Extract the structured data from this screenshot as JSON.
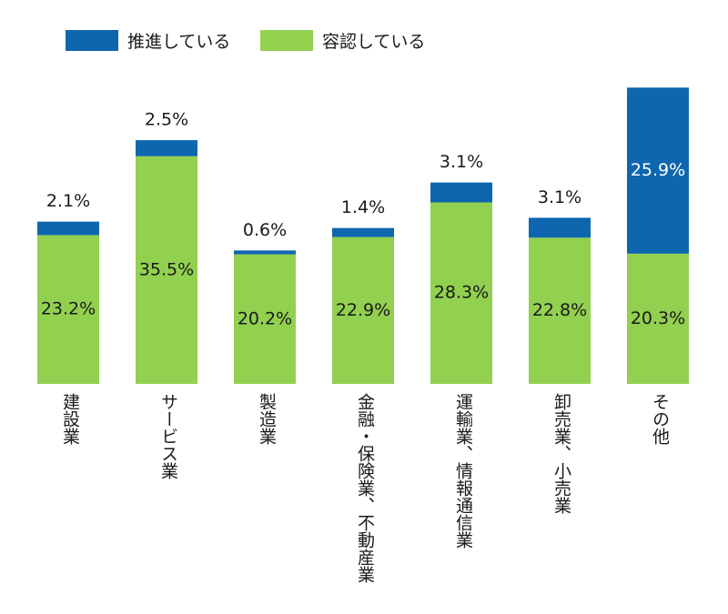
{
  "chart_data": {
    "type": "bar",
    "stacked": true,
    "title": "",
    "xlabel": "",
    "ylabel": "",
    "ylim": [
      0,
      47
    ],
    "grid": false,
    "legend_position": "top-left",
    "categories": [
      "建設業",
      "サービス業",
      "製造業",
      "金融・保険業、不動産業",
      "運輸業、情報通信業",
      "卸売業、小売業",
      "その他"
    ],
    "series": [
      {
        "name": "容認している",
        "color": "#92d050",
        "values": [
          23.2,
          35.5,
          20.2,
          22.9,
          28.3,
          22.8,
          20.3
        ],
        "labels": [
          "23.2%",
          "35.5%",
          "20.2%",
          "22.9%",
          "28.3%",
          "22.8%",
          "20.3%"
        ]
      },
      {
        "name": "推進している",
        "color": "#0e66ae",
        "values": [
          2.1,
          2.5,
          0.6,
          1.4,
          3.1,
          3.1,
          25.9
        ],
        "labels": [
          "2.1%",
          "2.5%",
          "0.6%",
          "1.4%",
          "3.1%",
          "3.1%",
          "25.9%"
        ]
      }
    ]
  },
  "legend": {
    "promote": {
      "label": "推進している",
      "color": "#0e66ae"
    },
    "accept": {
      "label": "容認している",
      "color": "#92d050"
    }
  }
}
